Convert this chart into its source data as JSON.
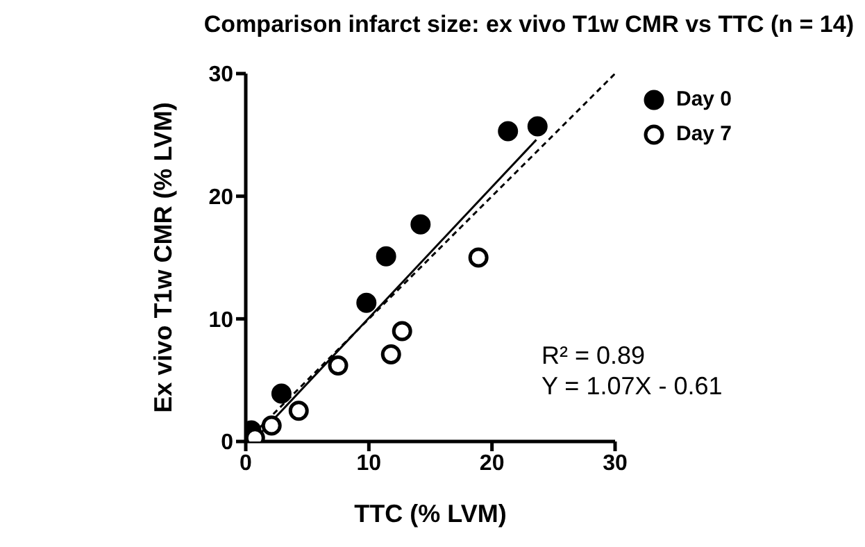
{
  "chart_data": {
    "type": "scatter",
    "title": "Comparison infarct size: ex vivo T1w CMR vs TTC (n  = 14)",
    "xlabel": "TTC (% LVM)",
    "ylabel": "Ex vivo T1w CMR (% LVM)",
    "xlim": [
      0,
      30
    ],
    "ylim": [
      0,
      30
    ],
    "xticks": [
      0,
      10,
      20,
      30
    ],
    "yticks": [
      0,
      10,
      20,
      30
    ],
    "legend": "top right",
    "marker": "circle",
    "annotations": [
      "R² = 0.89",
      "Y = 1.07X - 0.61"
    ],
    "series": [
      {
        "name": "Day 0",
        "color": "#000000",
        "x": [
          0.45,
          2.9,
          9.8,
          11.4,
          14.2,
          21.3,
          23.7
        ],
        "values": [
          0.9,
          3.9,
          11.3,
          15.1,
          17.7,
          25.3,
          25.7
        ]
      },
      {
        "name": "Day 7",
        "color": "#000000",
        "x": [
          0.75,
          2.1,
          4.3,
          7.5,
          11.8,
          12.7,
          18.9
        ],
        "values": [
          0.3,
          1.3,
          2.5,
          6.2,
          7.1,
          9.0,
          15.0
        ]
      },
      {
        "type": "line",
        "color": "#000000",
        "line_style": "solid",
        "marker": "none",
        "x": [
          0.57,
          23.6
        ],
        "values": [
          0,
          24.6
        ]
      },
      {
        "type": "line",
        "color": "#000000",
        "line_style": "dashed",
        "marker": "none",
        "x": [
          0,
          30
        ],
        "values": [
          0,
          30
        ]
      }
    ]
  }
}
